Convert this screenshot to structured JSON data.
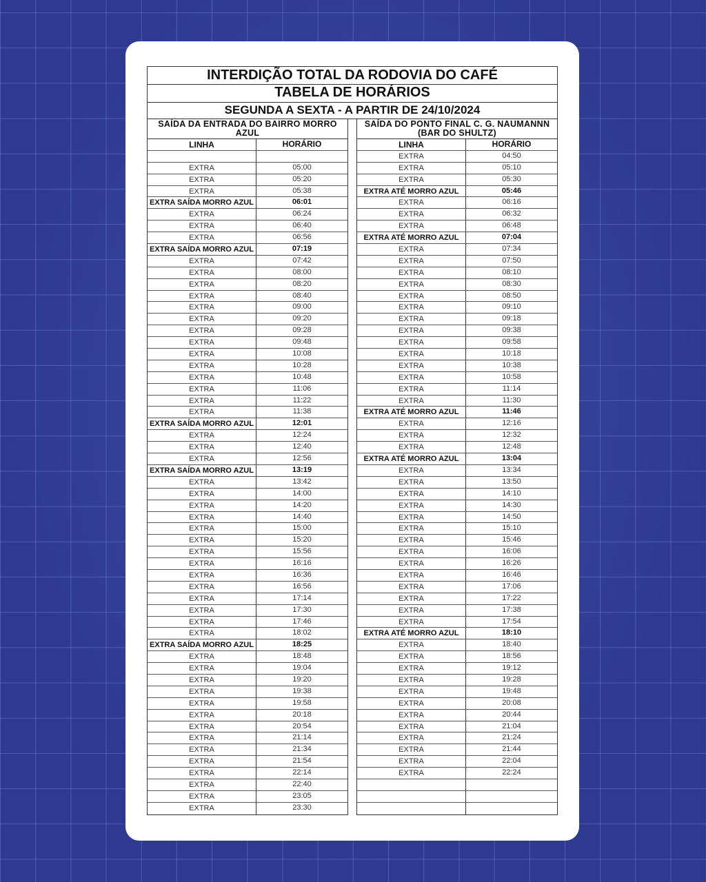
{
  "title": "INTERDIÇÃO TOTAL DA RODOVIA DO CAFÉ",
  "subtitle": "TABELA DE HORÁRIOS",
  "period": "SEGUNDA A SEXTA - A PARTIR DE 24/10/2024",
  "colors": {
    "background": "#2d3a8f",
    "card": "#ffffff"
  },
  "left": {
    "heading": "SAÍDA DA ENTRADA DO BAIRRO MORRO AZUL",
    "col_linha": "LINHA",
    "col_horario": "HORÁRIO",
    "rows": [
      {
        "linha": "",
        "horario": ""
      },
      {
        "linha": "EXTRA",
        "horario": "05:00"
      },
      {
        "linha": "EXTRA",
        "horario": "05:20"
      },
      {
        "linha": "EXTRA",
        "horario": "05:38"
      },
      {
        "linha": "EXTRA SAÍDA MORRO AZUL",
        "horario": "06:01",
        "highlight": true
      },
      {
        "linha": "EXTRA",
        "horario": "06:24"
      },
      {
        "linha": "EXTRA",
        "horario": "06:40"
      },
      {
        "linha": "EXTRA",
        "horario": "06:56"
      },
      {
        "linha": "EXTRA SAÍDA MORRO AZUL",
        "horario": "07:19",
        "highlight": true
      },
      {
        "linha": "EXTRA",
        "horario": "07:42"
      },
      {
        "linha": "EXTRA",
        "horario": "08:00"
      },
      {
        "linha": "EXTRA",
        "horario": "08:20"
      },
      {
        "linha": "EXTRA",
        "horario": "08:40"
      },
      {
        "linha": "EXTRA",
        "horario": "09:00"
      },
      {
        "linha": "EXTRA",
        "horario": "09:20"
      },
      {
        "linha": "EXTRA",
        "horario": "09:28"
      },
      {
        "linha": "EXTRA",
        "horario": "09:48"
      },
      {
        "linha": "EXTRA",
        "horario": "10:08"
      },
      {
        "linha": "EXTRA",
        "horario": "10:28"
      },
      {
        "linha": "EXTRA",
        "horario": "10:48"
      },
      {
        "linha": "EXTRA",
        "horario": "11:06"
      },
      {
        "linha": "EXTRA",
        "horario": "11:22"
      },
      {
        "linha": "EXTRA",
        "horario": "11:38"
      },
      {
        "linha": "EXTRA SAÍDA MORRO AZUL",
        "horario": "12:01",
        "highlight": true
      },
      {
        "linha": "EXTRA",
        "horario": "12:24"
      },
      {
        "linha": "EXTRA",
        "horario": "12:40"
      },
      {
        "linha": "EXTRA",
        "horario": "12:56"
      },
      {
        "linha": "EXTRA SAÍDA MORRO AZUL",
        "horario": "13:19",
        "highlight": true
      },
      {
        "linha": "EXTRA",
        "horario": "13:42"
      },
      {
        "linha": "EXTRA",
        "horario": "14:00"
      },
      {
        "linha": "EXTRA",
        "horario": "14:20"
      },
      {
        "linha": "EXTRA",
        "horario": "14:40"
      },
      {
        "linha": "EXTRA",
        "horario": "15:00"
      },
      {
        "linha": "EXTRA",
        "horario": "15:20"
      },
      {
        "linha": "EXTRA",
        "horario": "15:56"
      },
      {
        "linha": "EXTRA",
        "horario": "16:16"
      },
      {
        "linha": "EXTRA",
        "horario": "16:36"
      },
      {
        "linha": "EXTRA",
        "horario": "16:56"
      },
      {
        "linha": "EXTRA",
        "horario": "17:14"
      },
      {
        "linha": "EXTRA",
        "horario": "17:30"
      },
      {
        "linha": "EXTRA",
        "horario": "17:46"
      },
      {
        "linha": "EXTRA",
        "horario": "18:02"
      },
      {
        "linha": "EXTRA SAÍDA MORRO AZUL",
        "horario": "18:25",
        "highlight": true
      },
      {
        "linha": "EXTRA",
        "horario": "18:48"
      },
      {
        "linha": "EXTRA",
        "horario": "19:04"
      },
      {
        "linha": "EXTRA",
        "horario": "19:20"
      },
      {
        "linha": "EXTRA",
        "horario": "19:38"
      },
      {
        "linha": "EXTRA",
        "horario": "19:58"
      },
      {
        "linha": "EXTRA",
        "horario": "20:18"
      },
      {
        "linha": "EXTRA",
        "horario": "20:54"
      },
      {
        "linha": "EXTRA",
        "horario": "21:14"
      },
      {
        "linha": "EXTRA",
        "horario": "21:34"
      },
      {
        "linha": "EXTRA",
        "horario": "21:54"
      },
      {
        "linha": "EXTRA",
        "horario": "22:14"
      },
      {
        "linha": "EXTRA",
        "horario": "22:40"
      },
      {
        "linha": "EXTRA",
        "horario": "23:05"
      },
      {
        "linha": "EXTRA",
        "horario": "23:30"
      }
    ]
  },
  "right": {
    "heading": "SAÍDA DO PONTO FINAL C. G. NAUMANNN (BAR DO SHULTZ)",
    "col_linha": "LINHA",
    "col_horario": "HORÁRIO",
    "rows": [
      {
        "linha": "EXTRA",
        "horario": "04:50"
      },
      {
        "linha": "EXTRA",
        "horario": "05:10"
      },
      {
        "linha": "EXTRA",
        "horario": "05:30"
      },
      {
        "linha": "EXTRA ATÉ MORRO AZUL",
        "horario": "05:46",
        "highlight": true
      },
      {
        "linha": "EXTRA",
        "horario": "06:16"
      },
      {
        "linha": "EXTRA",
        "horario": "06:32"
      },
      {
        "linha": "EXTRA",
        "horario": "06:48"
      },
      {
        "linha": "EXTRA ATÉ MORRO AZUL",
        "horario": "07:04",
        "highlight": true
      },
      {
        "linha": "EXTRA",
        "horario": "07:34"
      },
      {
        "linha": "EXTRA",
        "horario": "07:50"
      },
      {
        "linha": "EXTRA",
        "horario": "08:10"
      },
      {
        "linha": "EXTRA",
        "horario": "08:30"
      },
      {
        "linha": "EXTRA",
        "horario": "08:50"
      },
      {
        "linha": "EXTRA",
        "horario": "09:10"
      },
      {
        "linha": "EXTRA",
        "horario": "09:18"
      },
      {
        "linha": "EXTRA",
        "horario": "09:38"
      },
      {
        "linha": "EXTRA",
        "horario": "09:58"
      },
      {
        "linha": "EXTRA",
        "horario": "10:18"
      },
      {
        "linha": "EXTRA",
        "horario": "10:38"
      },
      {
        "linha": "EXTRA",
        "horario": "10:58"
      },
      {
        "linha": "EXTRA",
        "horario": "11:14"
      },
      {
        "linha": "EXTRA",
        "horario": "11:30"
      },
      {
        "linha": "EXTRA ATÉ MORRO AZUL",
        "horario": "11:46",
        "highlight": true
      },
      {
        "linha": "EXTRA",
        "horario": "12:16"
      },
      {
        "linha": "EXTRA",
        "horario": "12:32"
      },
      {
        "linha": "EXTRA",
        "horario": "12:48"
      },
      {
        "linha": "EXTRA ATÉ MORRO AZUL",
        "horario": "13:04",
        "highlight": true
      },
      {
        "linha": "EXTRA",
        "horario": "13:34"
      },
      {
        "linha": "EXTRA",
        "horario": "13:50"
      },
      {
        "linha": "EXTRA",
        "horario": "14:10"
      },
      {
        "linha": "EXTRA",
        "horario": "14:30"
      },
      {
        "linha": "EXTRA",
        "horario": "14:50"
      },
      {
        "linha": "EXTRA",
        "horario": "15:10"
      },
      {
        "linha": "EXTRA",
        "horario": "15:46"
      },
      {
        "linha": "EXTRA",
        "horario": "16:06"
      },
      {
        "linha": "EXTRA",
        "horario": "16:26"
      },
      {
        "linha": "EXTRA",
        "horario": "16:46"
      },
      {
        "linha": "EXTRA",
        "horario": "17:06"
      },
      {
        "linha": "EXTRA",
        "horario": "17:22"
      },
      {
        "linha": "EXTRA",
        "horario": "17:38"
      },
      {
        "linha": "EXTRA",
        "horario": "17:54"
      },
      {
        "linha": "EXTRA ATÉ MORRO AZUL",
        "horario": "18:10",
        "highlight": true
      },
      {
        "linha": "EXTRA",
        "horario": "18:40"
      },
      {
        "linha": "EXTRA",
        "horario": "18:56"
      },
      {
        "linha": "EXTRA",
        "horario": "19:12"
      },
      {
        "linha": "EXTRA",
        "horario": "19:28"
      },
      {
        "linha": "EXTRA",
        "horario": "19:48"
      },
      {
        "linha": "EXTRA",
        "horario": "20:08"
      },
      {
        "linha": "EXTRA",
        "horario": "20:44"
      },
      {
        "linha": "EXTRA",
        "horario": "21:04"
      },
      {
        "linha": "EXTRA",
        "horario": "21:24"
      },
      {
        "linha": "EXTRA",
        "horario": "21:44"
      },
      {
        "linha": "EXTRA",
        "horario": "22:04"
      },
      {
        "linha": "EXTRA",
        "horario": "22:24"
      },
      {
        "linha": "",
        "horario": ""
      },
      {
        "linha": "",
        "horario": ""
      },
      {
        "linha": "",
        "horario": ""
      }
    ]
  }
}
